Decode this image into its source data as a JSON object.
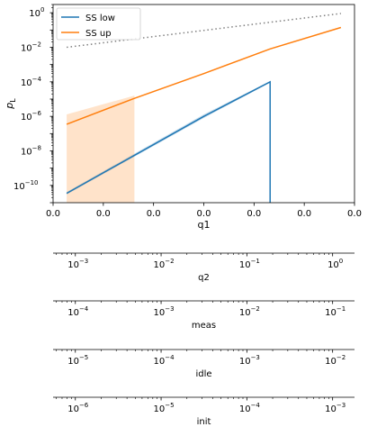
{
  "chart_data": {
    "type": "line",
    "ylabel": "p_L",
    "ylabel_main": "p",
    "ylabel_sub": "L",
    "yscale": "log",
    "ylim": [
      1e-11,
      3
    ],
    "xlim": [
      0,
      1
    ],
    "x_tick_values": [
      0,
      0.1667,
      0.3333,
      0.5,
      0.6667,
      0.8333,
      1.0
    ],
    "x_tick_labels": [
      "0.0",
      "0.0",
      "0.0",
      "0.0",
      "0.0",
      "0.0",
      "0.0"
    ],
    "y_ticks": [
      {
        "value": 1,
        "label": "10^0"
      },
      {
        "value": 0.01,
        "label": "10^-2"
      },
      {
        "value": 0.0001,
        "label": "10^-4"
      },
      {
        "value": 1e-06,
        "label": "10^-6"
      },
      {
        "value": 1e-08,
        "label": "10^-8"
      },
      {
        "value": 1e-10,
        "label": "10^-10"
      }
    ],
    "legend_position": "top-left",
    "series": [
      {
        "name": "SS low",
        "color": "#1f77b4",
        "x": [
          0.045,
          0.5,
          0.72,
          0.72
        ],
        "y": [
          3.5e-11,
          1e-06,
          0.0001,
          1e-11
        ],
        "band": {
          "x": [
            0.045,
            0.5,
            0.72
          ],
          "lower": [
            3e-11,
            8e-07,
            9e-05
          ],
          "upper": [
            4.2e-11,
            1.3e-06,
            0.00011
          ]
        }
      },
      {
        "name": "SS up",
        "color": "#ff7f0e",
        "x": [
          0.045,
          0.27,
          0.5,
          0.72,
          0.955
        ],
        "y": [
          3.5e-07,
          1.1e-05,
          0.0003,
          0.008,
          0.14
        ],
        "band": {
          "x": [
            0.045,
            0.27
          ],
          "lower": [
            1e-11,
            1e-11
          ],
          "upper": [
            1.3e-06,
            1.6e-05
          ]
        }
      },
      {
        "name": "",
        "color": "#808080",
        "style": "dotted",
        "x": [
          0.045,
          0.955
        ],
        "y": [
          0.01,
          0.9
        ]
      }
    ],
    "xlabel": "q1",
    "secondary_axes": [
      {
        "label": "q2",
        "decades": [
          -3,
          0
        ],
        "min": 0.00055,
        "max": 1.8
      },
      {
        "label": "meas",
        "decades": [
          -4,
          -1
        ],
        "min": 5.5e-05,
        "max": 0.18
      },
      {
        "label": "idle",
        "decades": [
          -5,
          -2
        ],
        "min": 5.5e-06,
        "max": 0.018
      },
      {
        "label": "init",
        "decades": [
          -6,
          -3
        ],
        "min": 5.5e-07,
        "max": 0.0018
      }
    ]
  }
}
